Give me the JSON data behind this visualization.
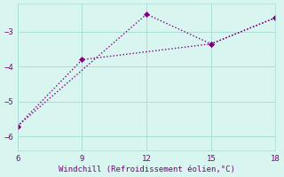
{
  "line1_x": [
    6,
    12,
    15,
    18
  ],
  "line1_y": [
    -5.7,
    -2.5,
    -3.35,
    -2.6
  ],
  "line2_x": [
    6,
    9,
    15,
    18
  ],
  "line2_y": [
    -5.7,
    -3.8,
    -3.35,
    -2.6
  ],
  "color": "#800080",
  "bg_color": "#d8f5f0",
  "grid_color": "#aaddd6",
  "xlabel": "Windchill (Refroidissement éolien,°C)",
  "xlabel_color": "#800080",
  "tick_color": "#800080",
  "xlim": [
    6,
    18
  ],
  "ylim": [
    -6.4,
    -2.2
  ],
  "xticks": [
    6,
    9,
    12,
    15,
    18
  ],
  "yticks": [
    -6,
    -5,
    -4,
    -3
  ],
  "markersize": 3,
  "linewidth": 1.0,
  "linestyle": "dotted"
}
